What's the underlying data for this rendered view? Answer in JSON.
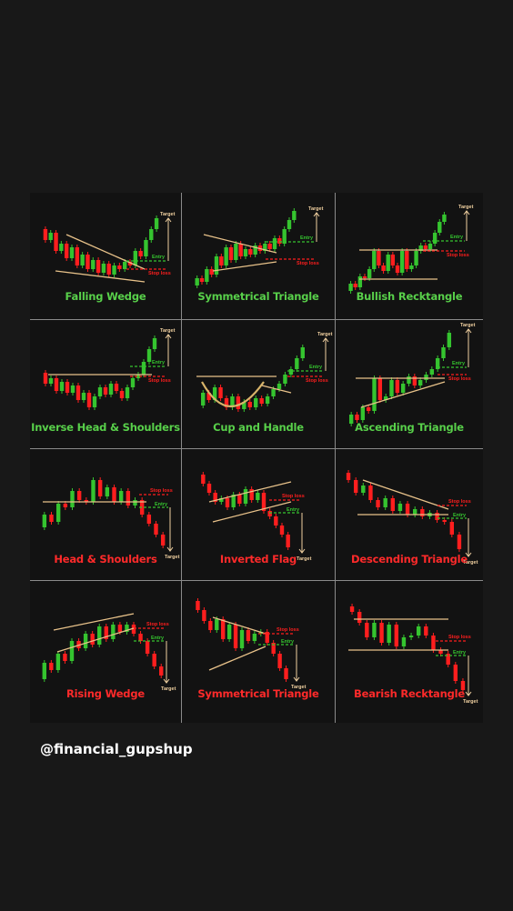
{
  "colors": {
    "background": "#181818",
    "panel": "#121212",
    "bull": "#35c42f",
    "bear": "#ff1e1e",
    "bull_label": "#58d04a",
    "bear_label": "#ff2a2a",
    "trendline": "#e8c28a",
    "target_arrow": "#f0d0a0",
    "grid_line": "#8a8a8a"
  },
  "patterns": [
    {
      "name": "Falling Wedge",
      "bias": "bullish",
      "markers": {
        "target": "Target",
        "entry": "Entry",
        "stop": "Stop loss"
      }
    },
    {
      "name": "Symmetrical Triangle",
      "bias": "bullish",
      "markers": {
        "target": "Target",
        "entry": "Entry",
        "stop": "Stop loss"
      }
    },
    {
      "name": "Bullish Recktangle",
      "bias": "bullish",
      "markers": {
        "target": "Target",
        "entry": "Entry",
        "stop": "Stop loss"
      }
    },
    {
      "name": "Inverse Head & Shoulders",
      "bias": "bullish",
      "markers": {
        "target": "Target",
        "entry": "Entry",
        "stop": "Stop loss"
      }
    },
    {
      "name": "Cup and Handle",
      "bias": "bullish",
      "markers": {
        "target": "Target",
        "entry": "Entry",
        "stop": "Stop loss"
      }
    },
    {
      "name": "Ascending Triangle",
      "bias": "bullish",
      "markers": {
        "target": "Target",
        "entry": "Entry",
        "stop": "Stop loss"
      }
    },
    {
      "name": "Head & Shoulders",
      "bias": "bearish",
      "markers": {
        "target": "Target",
        "entry": "Entry",
        "stop": "Stop loss"
      }
    },
    {
      "name": "Inverted Flag",
      "bias": "bearish",
      "markers": {
        "target": "Target",
        "entry": "Entry",
        "stop": "Stop loss"
      }
    },
    {
      "name": "Descending Triangle",
      "bias": "bearish",
      "markers": {
        "target": "Target",
        "entry": "Entry",
        "stop": "Stop loss"
      }
    },
    {
      "name": "Rising Wedge",
      "bias": "bearish",
      "markers": {
        "target": "Target",
        "entry": "Entry",
        "stop": "Stop loss"
      }
    },
    {
      "name": "Symmetrical Triangle",
      "bias": "bearish",
      "markers": {
        "target": "Target",
        "entry": "Entry",
        "stop": "Stop loss"
      }
    },
    {
      "name": "Bearish Recktangle",
      "bias": "bearish",
      "markers": {
        "target": "Target",
        "entry": "Entry",
        "stop": "Stop loss"
      }
    }
  ],
  "footer": {
    "handle": "@financial_gupshup"
  }
}
